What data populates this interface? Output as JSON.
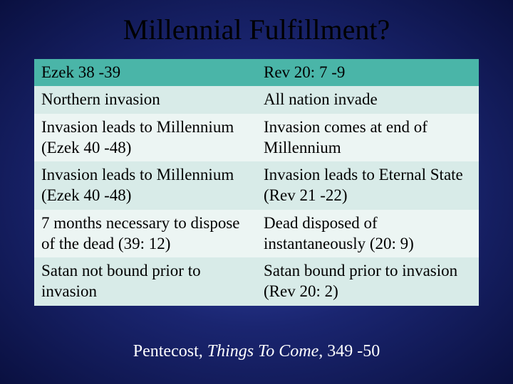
{
  "title": "Millennial Fulfillment?",
  "table": {
    "header_bg": "#4ab5a8",
    "odd_bg": "#d8ebe8",
    "even_bg": "#ecf5f3",
    "headers": {
      "left": "Ezek 38 -39",
      "right": "Rev 20: 7 -9"
    },
    "rows": [
      {
        "left": "Northern invasion",
        "right": "All nation invade"
      },
      {
        "left": "Invasion leads to Millennium (Ezek 40 -48)",
        "right": "Invasion comes at end of Millennium"
      },
      {
        "left": "Invasion leads to Millennium (Ezek 40 -48)",
        "right": "Invasion leads to Eternal State (Rev 21 -22)"
      },
      {
        "left": "7 months necessary to dispose of the dead (39: 12)",
        "right": "Dead disposed of instantaneously (20: 9)"
      },
      {
        "left": "Satan not bound prior to invasion",
        "right": "Satan bound prior to invasion (Rev 20: 2)"
      }
    ]
  },
  "citation": {
    "author": "Pentecost, ",
    "title_italic": "Things To Come",
    "pages": ", 349 -50"
  }
}
